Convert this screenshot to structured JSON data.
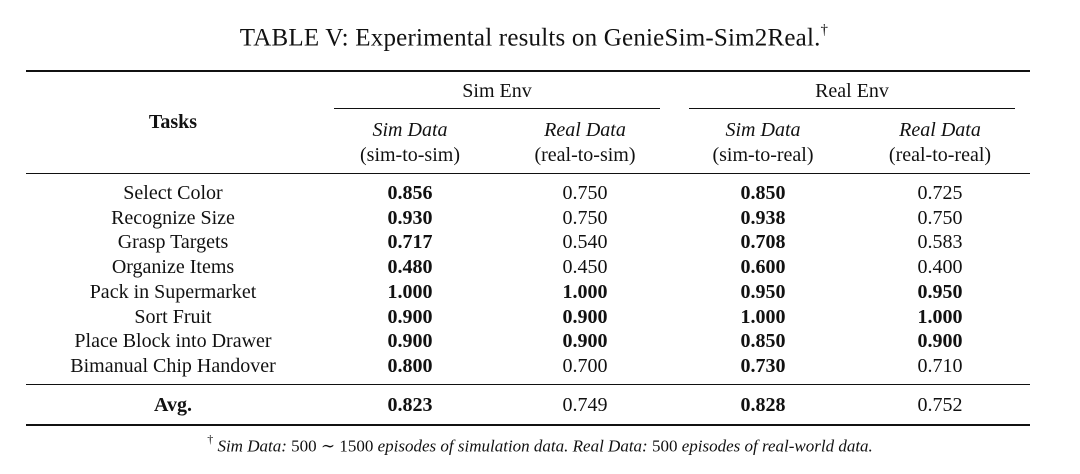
{
  "caption": {
    "title": "TABLE V: Experimental results on GenieSim-Sim2Real.",
    "mark": "†"
  },
  "table": {
    "tasks_header": "Tasks",
    "groups": [
      "Sim Env",
      "Real Env"
    ],
    "columns": [
      {
        "label": "Sim Data",
        "sub": "(sim-to-sim)"
      },
      {
        "label": "Real Data",
        "sub": "(real-to-sim)"
      },
      {
        "label": "Sim Data",
        "sub": "(sim-to-real)"
      },
      {
        "label": "Real Data",
        "sub": "(real-to-real)"
      }
    ],
    "rows": [
      {
        "task": "Select Color",
        "values": [
          "0.856",
          "0.750",
          "0.850",
          "0.725"
        ],
        "bold": [
          true,
          false,
          true,
          false
        ]
      },
      {
        "task": "Recognize Size",
        "values": [
          "0.930",
          "0.750",
          "0.938",
          "0.750"
        ],
        "bold": [
          true,
          false,
          true,
          false
        ]
      },
      {
        "task": "Grasp Targets",
        "values": [
          "0.717",
          "0.540",
          "0.708",
          "0.583"
        ],
        "bold": [
          true,
          false,
          true,
          false
        ]
      },
      {
        "task": "Organize Items",
        "values": [
          "0.480",
          "0.450",
          "0.600",
          "0.400"
        ],
        "bold": [
          true,
          false,
          true,
          false
        ]
      },
      {
        "task": "Pack in Supermarket",
        "values": [
          "1.000",
          "1.000",
          "0.950",
          "0.950"
        ],
        "bold": [
          true,
          true,
          true,
          true
        ]
      },
      {
        "task": "Sort Fruit",
        "values": [
          "0.900",
          "0.900",
          "1.000",
          "1.000"
        ],
        "bold": [
          true,
          true,
          true,
          true
        ]
      },
      {
        "task": "Place Block into Drawer",
        "values": [
          "0.900",
          "0.900",
          "0.850",
          "0.900"
        ],
        "bold": [
          true,
          true,
          true,
          true
        ]
      },
      {
        "task": "Bimanual Chip Handover",
        "values": [
          "0.800",
          "0.700",
          "0.730",
          "0.710"
        ],
        "bold": [
          true,
          false,
          true,
          false
        ]
      }
    ],
    "avg": {
      "task": "Avg.",
      "values": [
        "0.823",
        "0.749",
        "0.828",
        "0.752"
      ],
      "bold": [
        true,
        false,
        true,
        false
      ]
    }
  },
  "footnote": {
    "mark": "†",
    "sim_label": "Sim Data:",
    "sim_text_a": " 500 ∼ 1500 ",
    "sim_text_b": "episodes of simulation data.",
    "real_label": "Real Data:",
    "real_text_a": " 500 ",
    "real_text_b": "episodes of real-world data."
  }
}
